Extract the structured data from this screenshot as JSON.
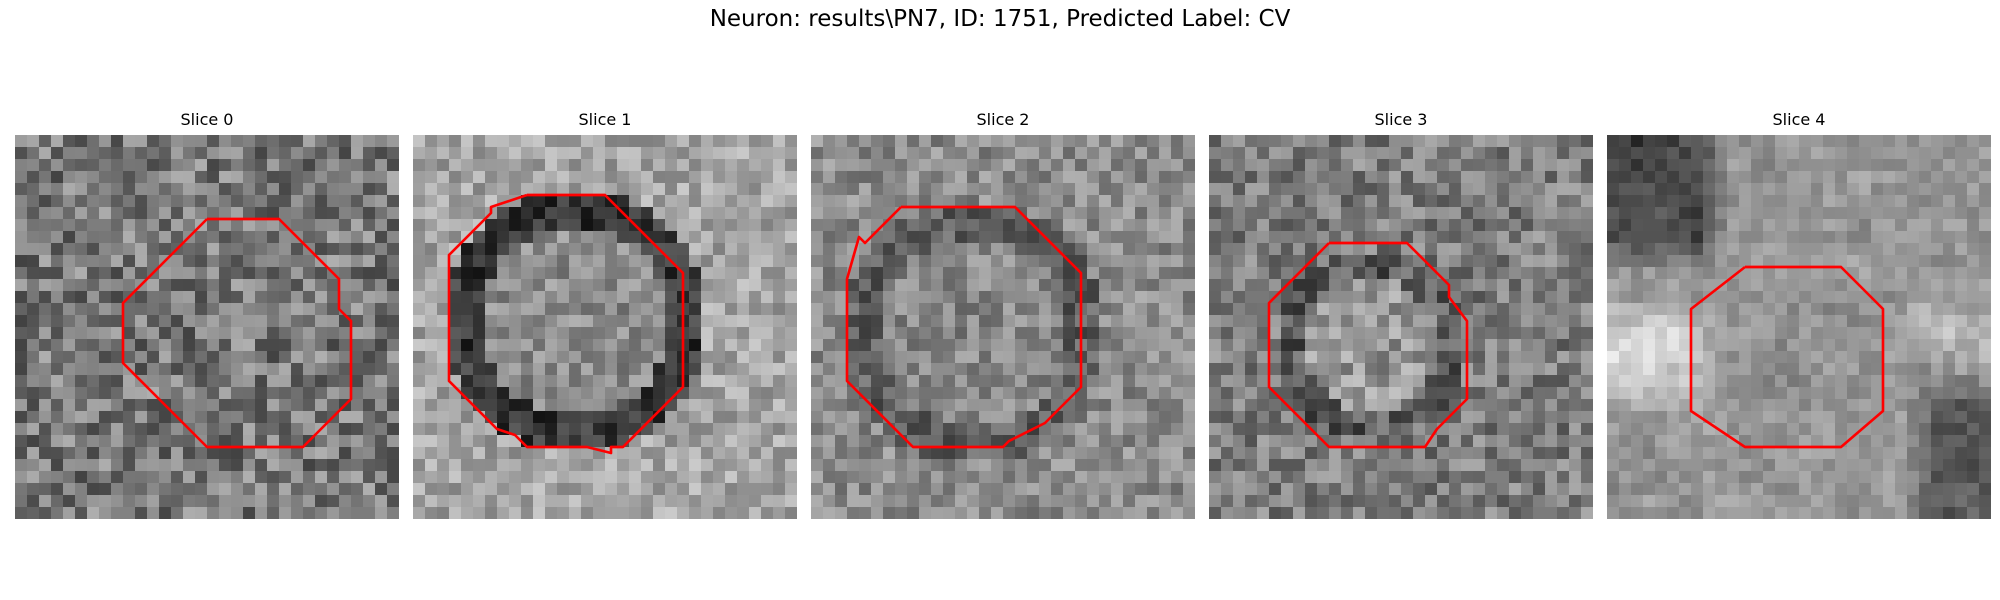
{
  "figure": {
    "title": "Neuron: results\\PN7, ID: 1751, Predicted Label: CV"
  },
  "colors": {
    "contour": "#ff0000",
    "background": "#ffffff"
  },
  "slices": [
    {
      "title": "Slice 0"
    },
    {
      "title": "Slice 1"
    },
    {
      "title": "Slice 2"
    },
    {
      "title": "Slice 3"
    },
    {
      "title": "Slice 4"
    }
  ]
}
